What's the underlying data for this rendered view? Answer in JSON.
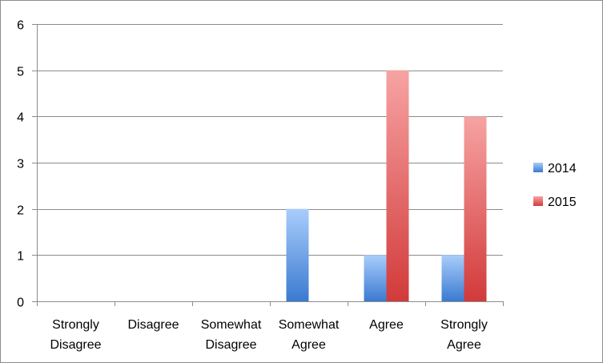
{
  "chart_data": {
    "type": "bar",
    "categories": [
      [
        "Strongly",
        "Disagree"
      ],
      [
        "Disagree"
      ],
      [
        "Somewhat",
        "Disagree"
      ],
      [
        "Somewhat",
        "Agree"
      ],
      [
        "Agree"
      ],
      [
        "Strongly",
        "Agree"
      ]
    ],
    "series": [
      {
        "name": "2014",
        "values": [
          0,
          0,
          0,
          2,
          1,
          1
        ],
        "color_top": "#a9cdfb",
        "color_bottom": "#3b7ad1"
      },
      {
        "name": "2015",
        "values": [
          0,
          0,
          0,
          0,
          5,
          4
        ],
        "color_top": "#f7a3a3",
        "color_bottom": "#d23a3a"
      }
    ],
    "ylim": [
      0,
      6
    ],
    "yticks": [
      0,
      1,
      2,
      3,
      4,
      5,
      6
    ],
    "grid": true,
    "legend_position": "right",
    "title": "",
    "xlabel": "",
    "ylabel": ""
  }
}
